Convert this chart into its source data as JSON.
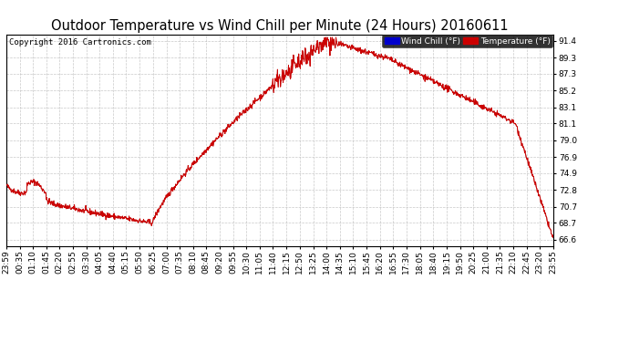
{
  "title": "Outdoor Temperature vs Wind Chill per Minute (24 Hours) 20160611",
  "copyright": "Copyright 2016 Cartronics.com",
  "legend_wind_chill": "Wind Chill (°F)",
  "legend_temperature": "Temperature (°F)",
  "ylabel_right_values": [
    66.6,
    68.7,
    70.7,
    72.8,
    74.9,
    76.9,
    79.0,
    81.1,
    83.1,
    85.2,
    87.3,
    89.3,
    91.4
  ],
  "ylim": [
    65.8,
    92.2
  ],
  "background_color": "#ffffff",
  "grid_color": "#bbbbbb",
  "line_color": "#cc0000",
  "title_fontsize": 10.5,
  "tick_fontsize": 6.5,
  "copyright_fontsize": 6.5,
  "x_tick_labels": [
    "23:59",
    "00:35",
    "01:10",
    "01:45",
    "02:20",
    "02:55",
    "03:30",
    "04:05",
    "04:40",
    "05:15",
    "05:50",
    "06:25",
    "07:00",
    "07:35",
    "08:10",
    "08:45",
    "09:20",
    "09:55",
    "10:30",
    "11:05",
    "11:40",
    "12:15",
    "12:50",
    "13:25",
    "14:00",
    "14:35",
    "15:10",
    "15:45",
    "16:20",
    "16:55",
    "17:30",
    "18:05",
    "18:40",
    "19:15",
    "19:50",
    "20:25",
    "21:00",
    "21:35",
    "22:10",
    "22:45",
    "23:20",
    "23:55"
  ]
}
